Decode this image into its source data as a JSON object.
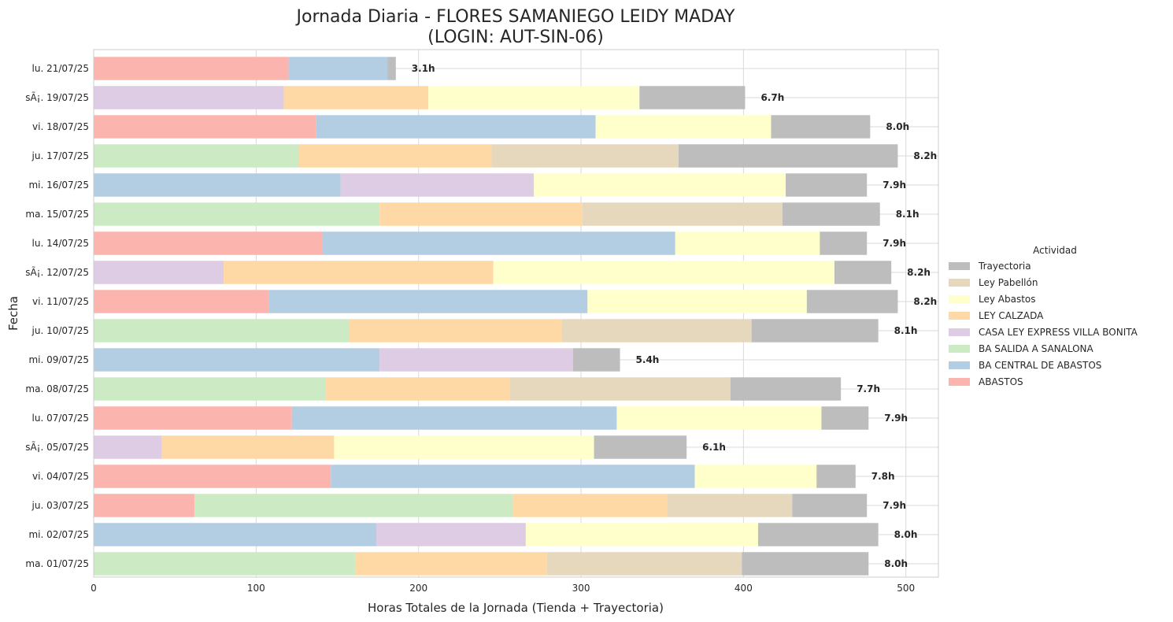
{
  "chart_data": {
    "type": "bar",
    "orientation": "horizontal",
    "stacked": true,
    "title_line1": "Jornada Diaria - FLORES SAMANIEGO LEIDY MADAY",
    "title_line2": "(LOGIN: AUT-SIN-06)",
    "xlabel": "Horas Totales de la Jornada (Tienda + Trayectoria)",
    "ylabel": "Fecha",
    "xlim": [
      0,
      520
    ],
    "xticks": [
      0,
      100,
      200,
      300,
      400,
      500
    ],
    "grid": true,
    "legend_title": "Actividad",
    "legend_placement": "right",
    "categories": [
      "lu. 21/07/25",
      "sÃ¡. 19/07/25",
      "vi. 18/07/25",
      "ju. 17/07/25",
      "mi. 16/07/25",
      "ma. 15/07/25",
      "lu. 14/07/25",
      "sÃ¡. 12/07/25",
      "vi. 11/07/25",
      "ju. 10/07/25",
      "mi. 09/07/25",
      "ma. 08/07/25",
      "lu. 07/07/25",
      "sÃ¡. 05/07/25",
      "vi. 04/07/25",
      "ju. 03/07/25",
      "mi. 02/07/25",
      "ma. 01/07/25"
    ],
    "series": [
      {
        "name": "ABASTOS",
        "color": "#fbb4ae",
        "values": [
          120,
          0,
          137,
          0,
          0,
          0,
          141,
          0,
          108,
          0,
          0,
          0,
          122,
          0,
          146,
          62,
          0,
          0
        ]
      },
      {
        "name": "BA CENTRAL DE ABASTOS",
        "color": "#b3cde3",
        "values": [
          61,
          0,
          172,
          0,
          152,
          0,
          217,
          0,
          196,
          0,
          176,
          0,
          200,
          0,
          224,
          0,
          174,
          0
        ]
      },
      {
        "name": "BA SALIDA A SANALONA",
        "color": "#ccebc5",
        "values": [
          0,
          0,
          0,
          126,
          0,
          176,
          0,
          0,
          0,
          157,
          0,
          143,
          0,
          0,
          0,
          196,
          0,
          161
        ]
      },
      {
        "name": "CASA LEY EXPRESS VILLA BONITA",
        "color": "#decbe4",
        "values": [
          0,
          117,
          0,
          0,
          119,
          0,
          0,
          80,
          0,
          0,
          119,
          0,
          0,
          42,
          0,
          0,
          92,
          0
        ]
      },
      {
        "name": "LEY CALZADA",
        "color": "#fed9a6",
        "values": [
          0,
          89,
          0,
          119,
          0,
          125,
          0,
          166,
          0,
          131,
          0,
          113,
          0,
          106,
          0,
          95,
          0,
          118
        ]
      },
      {
        "name": "Ley Abastos",
        "color": "#ffffcc",
        "values": [
          0,
          130,
          108,
          0,
          155,
          0,
          89,
          210,
          135,
          0,
          0,
          0,
          126,
          160,
          75,
          0,
          143,
          0
        ]
      },
      {
        "name": "Ley Pabellón",
        "color": "#e5d8bd",
        "values": [
          0,
          0,
          0,
          115,
          0,
          123,
          0,
          0,
          0,
          117,
          0,
          136,
          0,
          0,
          0,
          77,
          0,
          120
        ]
      },
      {
        "name": "Trayectoria",
        "color": "#bdbdbd",
        "values": [
          5,
          65,
          61,
          135,
          50,
          60,
          29,
          35,
          56,
          78,
          29,
          68,
          29,
          57,
          24,
          46,
          74,
          78
        ]
      }
    ],
    "total_labels": [
      "3.1h",
      "6.7h",
      "8.0h",
      "8.2h",
      "7.9h",
      "8.1h",
      "7.9h",
      "8.2h",
      "8.2h",
      "8.1h",
      "5.4h",
      "7.7h",
      "7.9h",
      "6.1h",
      "7.8h",
      "7.9h",
      "8.0h",
      "8.0h"
    ],
    "legend_order": [
      "Trayectoria",
      "Ley Pabellón",
      "Ley Abastos",
      "LEY CALZADA",
      "CASA LEY EXPRESS VILLA BONITA",
      "BA SALIDA A SANALONA",
      "BA CENTRAL DE ABASTOS",
      "ABASTOS"
    ]
  }
}
